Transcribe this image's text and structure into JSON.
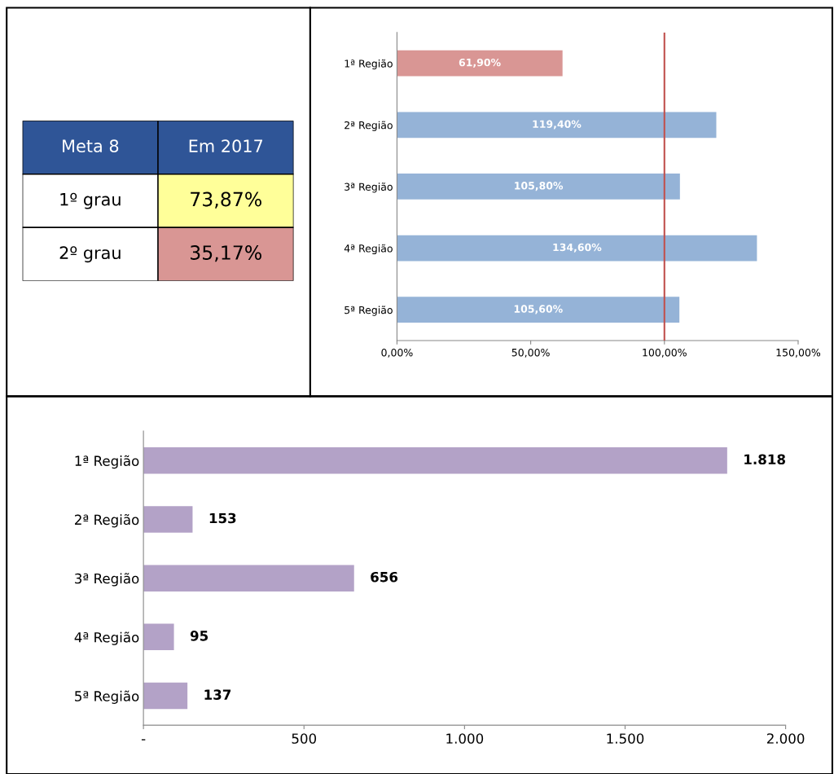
{
  "chart_data": [
    {
      "type": "other",
      "annotations": [
        "Meta 8",
        "Em 2017",
        "1º grau",
        "73,87%",
        "2º grau",
        "35,17%"
      ],
      "colors": [
        "#2f5597",
        "#2f5597",
        "#ffffff",
        "#ffff99",
        "#ffffff",
        "#d99694"
      ]
    },
    {
      "type": "bar",
      "orientation": "horizontal",
      "categories": [
        "1ª Região",
        "2ª Região",
        "3ª Região",
        "4ª Região",
        "5ª Região"
      ],
      "values": [
        61.9,
        119.4,
        105.8,
        134.6,
        105.6
      ],
      "colors": [
        "#d99694",
        "#95b3d7",
        "#95b3d7",
        "#95b3d7",
        "#95b3d7"
      ],
      "value_labels": [
        "61,90%",
        "119,40%",
        "105,80%",
        "134,60%",
        "105,60%"
      ],
      "xlim": [
        0,
        150
      ],
      "xticks": [
        {
          "value": 0,
          "label": "0,00%"
        },
        {
          "value": 50,
          "label": "50,00%"
        },
        {
          "value": 100,
          "label": "100,00%"
        },
        {
          "value": 150,
          "label": "150,00%"
        }
      ],
      "ref_lines": [
        {
          "axis": "x",
          "value": 100,
          "color": "#c0504d"
        }
      ],
      "grid": false,
      "legend": false
    },
    {
      "type": "bar",
      "orientation": "horizontal",
      "categories": [
        "1ª Região",
        "2ª Região",
        "3ª Região",
        "4ª Região",
        "5ª Região"
      ],
      "values": [
        1818,
        153,
        656,
        95,
        137
      ],
      "color": "#b3a2c7",
      "value_labels": [
        "1.818",
        "153",
        "656",
        "95",
        "137"
      ],
      "xlim": [
        0,
        2000
      ],
      "xticks": [
        {
          "value": 0,
          "label": "-"
        },
        {
          "value": 500,
          "label": "500"
        },
        {
          "value": 1000,
          "label": "1.000"
        },
        {
          "value": 1500,
          "label": "1.500"
        },
        {
          "value": 2000,
          "label": "2.000"
        }
      ],
      "grid": false,
      "legend": false
    }
  ]
}
